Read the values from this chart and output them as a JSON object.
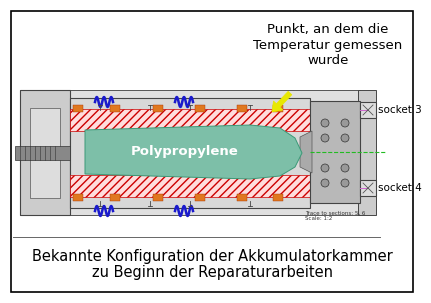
{
  "title_annotation": "Punkt, an dem die\nTemperatur gemessen\nwurde",
  "caption_line1": "Bekannte Konfiguration der Akkumulatorkammer",
  "caption_line2": "zu Beginn der Reparaturarbeiten",
  "socket3_label": "socket 3",
  "socket4_label": "socket 4",
  "polypropylene_label": "Polypropylene",
  "bg_color": "#ffffff",
  "border_color": "#000000",
  "green_fill": "#7dbfa8",
  "orange_fill": "#e07820",
  "blue_color": "#1a1acc",
  "annotation_font": 9.5,
  "caption_font": 10.5,
  "label_font": 7.5
}
